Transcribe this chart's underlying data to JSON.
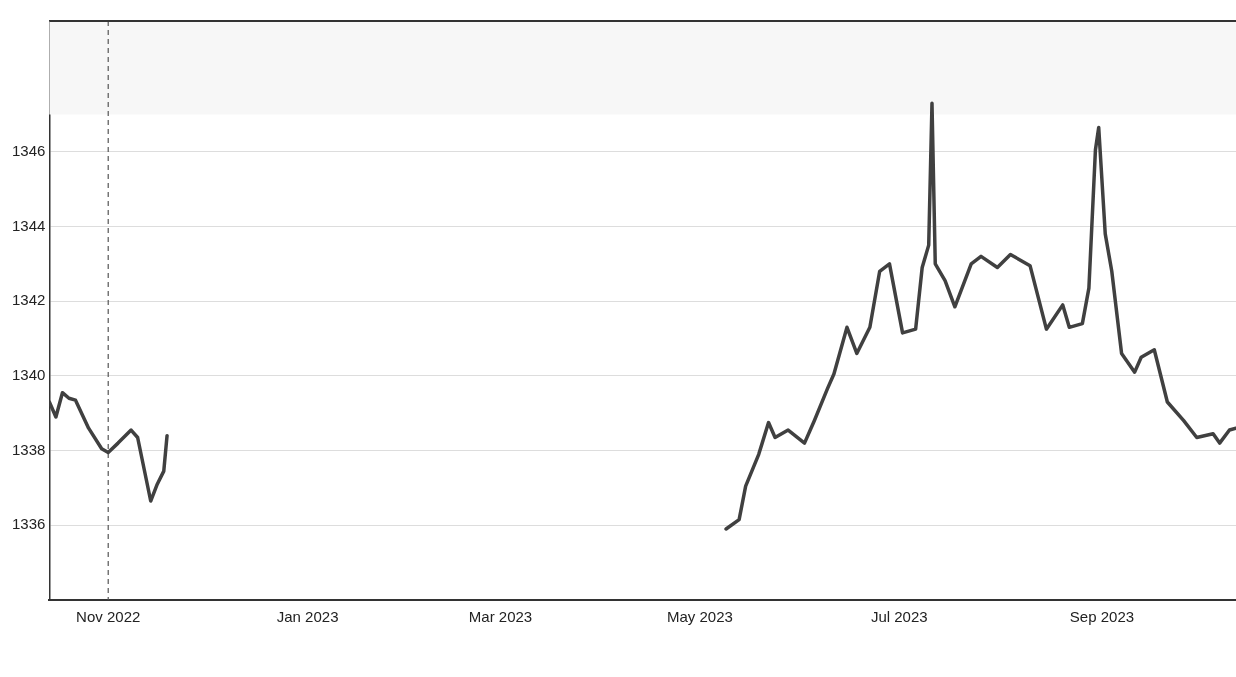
{
  "chart_data": {
    "type": "line",
    "x": [
      "2022-10-14",
      "2022-10-16",
      "2022-10-18",
      "2022-10-20",
      "2022-10-22",
      "2022-10-26",
      "2022-10-30",
      "2022-11-01",
      "2022-11-04",
      "2022-11-08",
      "2022-11-10",
      "2022-11-12",
      "2022-11-14",
      "2022-11-16",
      "2022-11-18",
      "2022-11-19",
      "2023-02-01",
      "2023-05-09",
      "2023-05-13",
      "2023-05-15",
      "2023-05-19",
      "2023-05-22",
      "2023-05-24",
      "2023-05-28",
      "2023-06-02",
      "2023-06-05",
      "2023-06-09",
      "2023-06-11",
      "2023-06-15",
      "2023-06-18",
      "2023-06-22",
      "2023-06-25",
      "2023-06-28",
      "2023-07-02",
      "2023-07-06",
      "2023-07-08",
      "2023-07-10",
      "2023-07-11",
      "2023-07-12",
      "2023-07-15",
      "2023-07-18",
      "2023-07-23",
      "2023-07-26",
      "2023-07-31",
      "2023-08-04",
      "2023-08-10",
      "2023-08-15",
      "2023-08-20",
      "2023-08-22",
      "2023-08-26",
      "2023-08-28",
      "2023-08-30",
      "2023-08-31",
      "2023-09-02",
      "2023-09-04",
      "2023-09-07",
      "2023-09-11",
      "2023-09-13",
      "2023-09-17",
      "2023-09-21",
      "2023-09-26",
      "2023-09-30",
      "2023-10-05",
      "2023-10-07",
      "2023-10-10",
      "2023-10-12"
    ],
    "series": [
      {
        "color": "#404040",
        "values": [
          1339.3,
          1338.9,
          1339.55,
          1339.4,
          1339.35,
          1338.6,
          1338.05,
          1337.95,
          1338.2,
          1338.55,
          1338.35,
          1337.5,
          1336.65,
          1337.1,
          1337.45,
          1338.4,
          null,
          1335.9,
          1336.15,
          1337.05,
          1337.9,
          1338.75,
          1338.35,
          1338.55,
          1338.2,
          1338.8,
          1339.65,
          1340.05,
          1341.3,
          1340.6,
          1341.3,
          1342.8,
          1343.0,
          1341.15,
          1341.25,
          1342.9,
          1343.5,
          1347.3,
          1343.0,
          1342.55,
          1341.85,
          1343.0,
          1343.2,
          1342.9,
          1343.25,
          1342.95,
          1341.25,
          1341.9,
          1341.3,
          1341.4,
          1342.35,
          1346.05,
          1346.65,
          1343.8,
          1342.8,
          1340.6,
          1340.1,
          1340.5,
          1340.7,
          1339.3,
          1338.8,
          1338.35,
          1338.45,
          1338.2,
          1338.55,
          1338.6
        ]
      }
    ],
    "xlim": [
      "2022-10-14",
      "2023-10-12"
    ],
    "xticks": [
      {
        "value": "2022-11-01",
        "label": "Nov 2022"
      },
      {
        "value": "2023-01-01",
        "label": "Jan 2023"
      },
      {
        "value": "2023-03-01",
        "label": "Mar 2023"
      },
      {
        "value": "2023-05-01",
        "label": "May 2023"
      },
      {
        "value": "2023-07-01",
        "label": "Jul 2023"
      },
      {
        "value": "2023-09-01",
        "label": "Sep 2023"
      }
    ],
    "ylim": [
      1334,
      1349.5
    ],
    "yticks": [
      1336,
      1338,
      1340,
      1342,
      1344,
      1346
    ],
    "grid": "y",
    "legend": false,
    "marker": "none",
    "line_style": "solid",
    "bands": [
      {
        "axis": "y",
        "from": 1347,
        "to": 1349.5,
        "color": "#f7f7f7"
      }
    ],
    "ref_lines": [
      {
        "axis": "x",
        "value": "2022-11-01",
        "color": "#555555",
        "line_style": "dashed"
      }
    ]
  }
}
